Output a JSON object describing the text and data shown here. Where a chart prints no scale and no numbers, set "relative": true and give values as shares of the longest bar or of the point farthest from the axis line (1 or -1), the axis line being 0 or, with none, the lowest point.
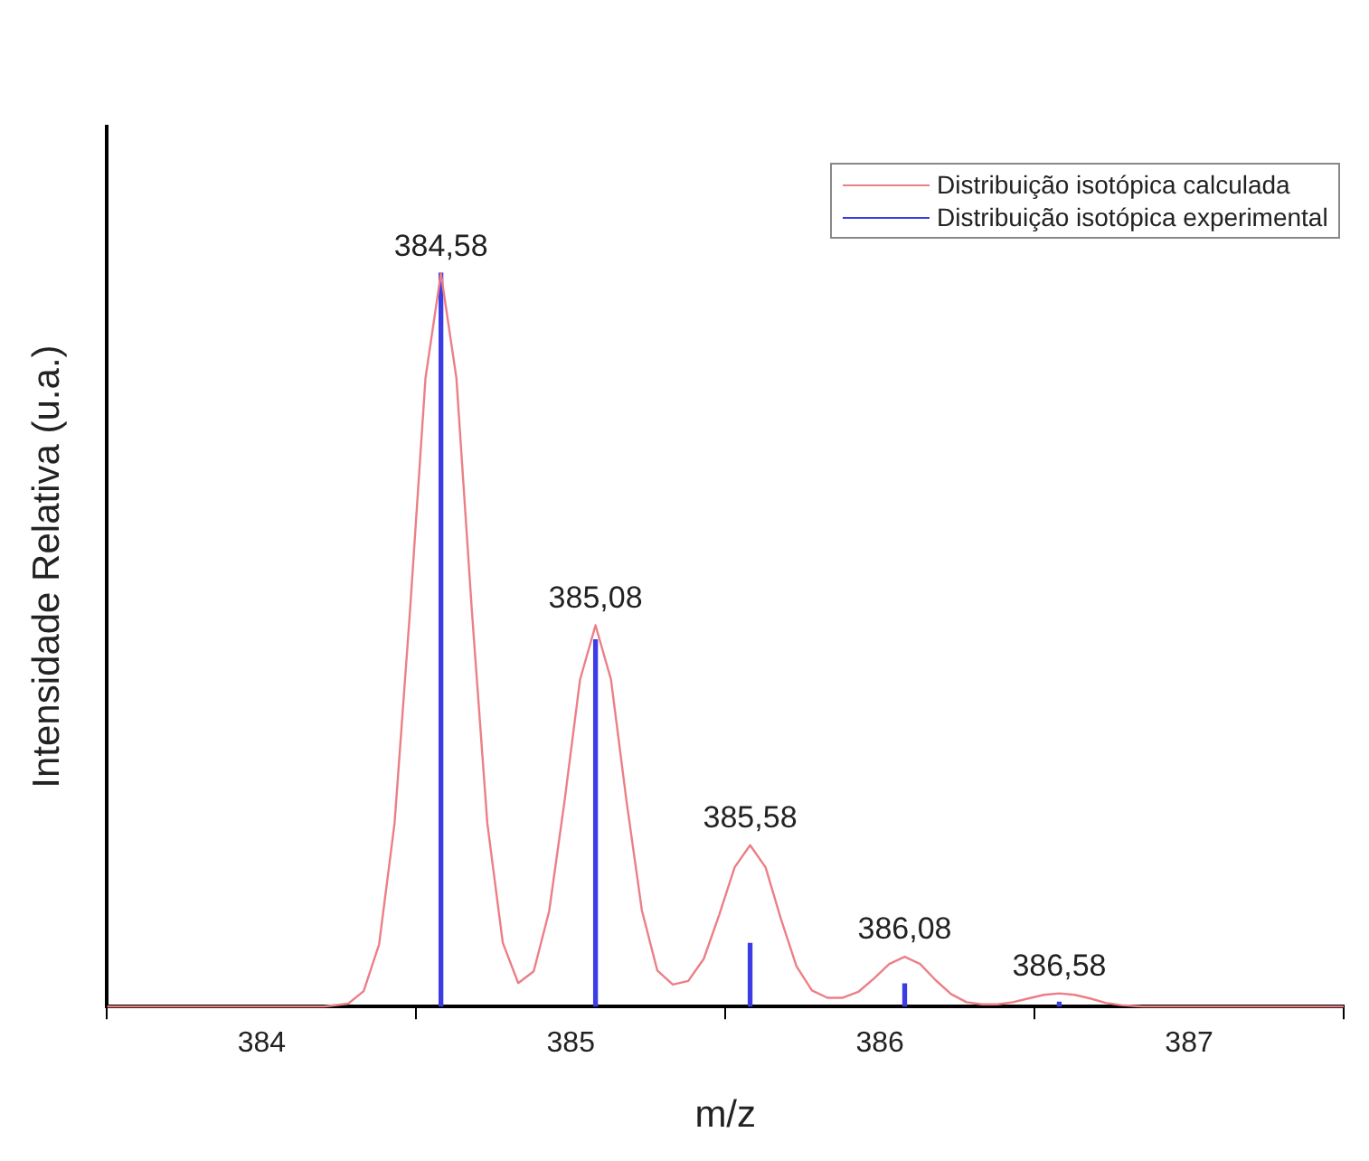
{
  "chart_data": {
    "type": "line",
    "xlabel": "m/z",
    "ylabel": "Intensidade Relativa (u.a.)",
    "xlim": [
      383.5,
      387.5
    ],
    "xticks": [
      384,
      385,
      386,
      387
    ],
    "relative": true,
    "legend": "top right",
    "marker": "none",
    "series": [
      {
        "name": "Distribuição isotópica calculada",
        "color": "#ec7f86",
        "x": [
          383.5,
          384.2,
          384.28,
          384.33,
          384.38,
          384.43,
          384.48,
          384.53,
          384.58,
          384.63,
          384.68,
          384.73,
          384.78,
          384.83,
          384.88,
          384.93,
          384.98,
          385.03,
          385.08,
          385.13,
          385.18,
          385.23,
          385.28,
          385.33,
          385.38,
          385.43,
          385.48,
          385.53,
          385.58,
          385.63,
          385.68,
          385.73,
          385.78,
          385.83,
          385.88,
          385.93,
          385.98,
          386.03,
          386.08,
          386.13,
          386.18,
          386.23,
          386.28,
          386.33,
          386.38,
          386.43,
          386.48,
          386.53,
          386.58,
          386.63,
          386.68,
          386.73,
          386.78,
          386.85,
          387.5
        ],
        "values": [
          0,
          0,
          0.004,
          0.021,
          0.085,
          0.25,
          0.54,
          0.857,
          1,
          0.857,
          0.54,
          0.25,
          0.087,
          0.032,
          0.048,
          0.13,
          0.281,
          0.446,
          0.52,
          0.446,
          0.281,
          0.131,
          0.049,
          0.03,
          0.035,
          0.065,
          0.125,
          0.19,
          0.22,
          0.19,
          0.119,
          0.055,
          0.022,
          0.012,
          0.012,
          0.02,
          0.038,
          0.058,
          0.068,
          0.058,
          0.036,
          0.017,
          0.006,
          0.003,
          0.003,
          0.006,
          0.011,
          0.016,
          0.018,
          0.016,
          0.011,
          0.005,
          0.002,
          0,
          0
        ]
      },
      {
        "name": "Distribuição isotópica experimental",
        "color": "#3c3ce6",
        "type": "bar",
        "x": [
          384.58,
          385.08,
          385.58,
          386.08,
          386.58
        ],
        "values": [
          1,
          0.5,
          0.086,
          0.031,
          0.006
        ]
      }
    ],
    "annotations": [
      {
        "text": "384,58",
        "x": 384.58,
        "y": 1
      },
      {
        "text": "385,08",
        "x": 385.08,
        "y": 0.52
      },
      {
        "text": "385,58",
        "x": 385.58,
        "y": 0.22
      },
      {
        "text": "386,08",
        "x": 386.08,
        "y": 0.068
      },
      {
        "text": "386,58",
        "x": 386.58,
        "y": 0.018
      }
    ]
  }
}
